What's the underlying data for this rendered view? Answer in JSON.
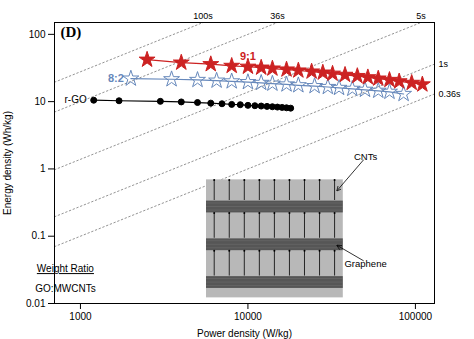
{
  "chart_data": {
    "type": "line",
    "title": "(D)",
    "xlabel": "Power density (W/kg)",
    "ylabel": "Energy density (Wh/kg)",
    "log": true,
    "xlim": [
      700,
      130000
    ],
    "ylim": [
      0.01,
      150
    ],
    "xticks": [
      1000,
      10000,
      100000
    ],
    "yticks": [
      0.01,
      0.1,
      1,
      10,
      100
    ],
    "grid": false,
    "series": [
      {
        "name": "100s",
        "type": "line",
        "color": "gray",
        "line_style": "dotted",
        "x": [
          700,
          5400
        ],
        "values": [
          19.444444444444443,
          150
        ]
      },
      {
        "name": "36s",
        "type": "line",
        "color": "gray",
        "line_style": "dotted",
        "x": [
          700,
          15000
        ],
        "values": [
          7,
          150
        ]
      },
      {
        "name": "5s",
        "type": "line",
        "color": "gray",
        "line_style": "dotted",
        "x": [
          700,
          108000
        ],
        "values": [
          0.9722222222222222,
          150
        ]
      },
      {
        "name": "1s",
        "type": "line",
        "color": "gray",
        "line_style": "dotted",
        "x": [
          700,
          130000
        ],
        "values": [
          0.19444444444444445,
          36.111111111111114
        ]
      },
      {
        "name": "0.36s",
        "type": "line",
        "color": "gray",
        "line_style": "dotted",
        "x": [
          700,
          130000
        ],
        "values": [
          0.07,
          13
        ]
      },
      {
        "name": "r-GO",
        "color": "#000000",
        "marker": "circle",
        "line_style": "solid",
        "x": [
          1200,
          1700,
          3000,
          4000,
          5000,
          6000,
          7000,
          8000,
          9000,
          10000,
          11000,
          12000,
          13000,
          14000,
          15000,
          16000,
          17000,
          18000
        ],
        "values": [
          10.5,
          10.3,
          10.1,
          9.9,
          9.7,
          9.5,
          9.3,
          9.1,
          9.0,
          8.8,
          8.7,
          8.6,
          8.5,
          8.4,
          8.3,
          8.2,
          8.1,
          8.0
        ]
      },
      {
        "name": "8:2",
        "color": "#6688bb",
        "marker": "open_star",
        "line_style": "solid",
        "x": [
          2000,
          3500,
          5000,
          6500,
          8000,
          10000,
          12000,
          14000,
          17000,
          20000,
          25000,
          30000,
          35000,
          42000,
          50000,
          60000,
          70000,
          85000
        ],
        "values": [
          22,
          21.5,
          21,
          20.5,
          20,
          19.5,
          19,
          18.5,
          18,
          17.5,
          17,
          16.5,
          16,
          15.5,
          15,
          14.5,
          14,
          13
        ]
      },
      {
        "name": "9:1",
        "color": "#cc2222",
        "marker": "star",
        "line_style": "solid",
        "x": [
          2500,
          4000,
          6000,
          8000,
          10000,
          12000,
          14000,
          17000,
          20000,
          24000,
          28000,
          32000,
          38000,
          45000,
          52000,
          60000,
          70000,
          80000,
          95000,
          110000
        ],
        "values": [
          42,
          38,
          36,
          34,
          33,
          32,
          31,
          30,
          29,
          28,
          27,
          26,
          25,
          24,
          23,
          22,
          21,
          20,
          19,
          18
        ]
      }
    ],
    "annotations": [
      "Weight Ratio",
      "GO:MWCNTs",
      "CNTs",
      "Graphene"
    ]
  }
}
